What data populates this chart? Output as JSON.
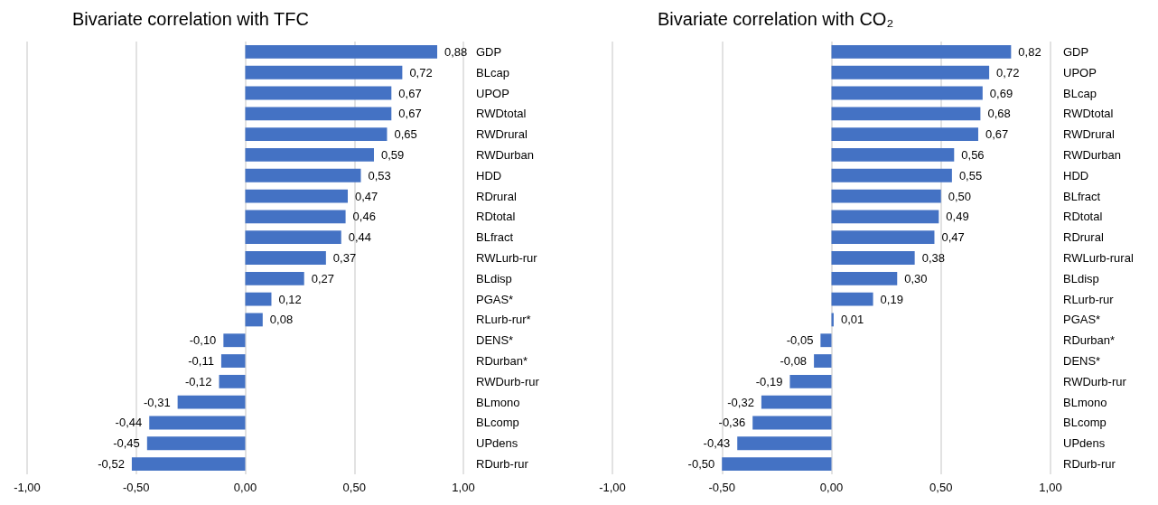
{
  "chart_data": [
    {
      "type": "bar",
      "orientation": "horizontal",
      "title": "Bivariate correlation with TFC",
      "categories": [
        "GDP",
        "BLcap",
        "UPOP",
        "RWDtotal",
        "RWDrural",
        "RWDurban",
        "HDD",
        "RDrural",
        "RDtotal",
        "BLfract",
        "RWLurb-rur",
        "BLdisp",
        "PGAS*",
        "RLurb-rur*",
        "DENS*",
        "RDurban*",
        "RWDurb-rur",
        "BLmono",
        "BLcomp",
        "UPdens",
        "RDurb-rur"
      ],
      "values": [
        0.88,
        0.72,
        0.67,
        0.67,
        0.65,
        0.59,
        0.53,
        0.47,
        0.46,
        0.44,
        0.37,
        0.27,
        0.12,
        0.08,
        -0.1,
        -0.11,
        -0.12,
        -0.31,
        -0.44,
        -0.45,
        -0.52
      ],
      "value_labels": [
        "0,88",
        "0,72",
        "0,67",
        "0,67",
        "0,65",
        "0,59",
        "0,53",
        "0,47",
        "0,46",
        "0,44",
        "0,37",
        "0,27",
        "0,12",
        "0,08",
        "-0,10",
        "-0,11",
        "-0,12",
        "-0,31",
        "-0,44",
        "-0,45",
        "-0,52"
      ],
      "color": "#4472c4",
      "xlim": [
        -1,
        1
      ],
      "xticks": [
        {
          "value": -1,
          "label": "-1,00"
        },
        {
          "value": -0.5,
          "label": "-0,50"
        },
        {
          "value": 0,
          "label": "0,00"
        },
        {
          "value": 0.5,
          "label": "0,50"
        },
        {
          "value": 1,
          "label": "1,00"
        }
      ],
      "grid": "x"
    },
    {
      "type": "bar",
      "orientation": "horizontal",
      "title": "Bivariate correlation with CO₂",
      "categories": [
        "GDP",
        "UPOP",
        "BLcap",
        "RWDtotal",
        "RWDrural",
        "RWDurban",
        "HDD",
        "BLfract",
        "RDtotal",
        "RDrural",
        "RWLurb-rural",
        "BLdisp",
        "RLurb-rur",
        "PGAS*",
        "RDurban*",
        "DENS*",
        "RWDurb-rur",
        "BLmono",
        "BLcomp",
        "UPdens",
        "RDurb-rur"
      ],
      "values": [
        0.82,
        0.72,
        0.69,
        0.68,
        0.67,
        0.56,
        0.55,
        0.5,
        0.49,
        0.47,
        0.38,
        0.3,
        0.19,
        0.01,
        -0.05,
        -0.08,
        -0.19,
        -0.32,
        -0.36,
        -0.43,
        -0.5
      ],
      "value_labels": [
        "0,82",
        "0,72",
        "0,69",
        "0,68",
        "0,67",
        "0,56",
        "0,55",
        "0,50",
        "0,49",
        "0,47",
        "0,38",
        "0,30",
        "0,19",
        "0,01",
        "-0,05",
        "-0,08",
        "-0,19",
        "-0,32",
        "-0,36",
        "-0,43",
        "-0,50"
      ],
      "color": "#4472c4",
      "xlim": [
        -1,
        1
      ],
      "xticks": [
        {
          "value": -1,
          "label": "-1,00"
        },
        {
          "value": -0.5,
          "label": "-0,50"
        },
        {
          "value": 0,
          "label": "0,00"
        },
        {
          "value": 0.5,
          "label": "0,50"
        },
        {
          "value": 1,
          "label": "1,00"
        }
      ],
      "grid": "x"
    }
  ]
}
